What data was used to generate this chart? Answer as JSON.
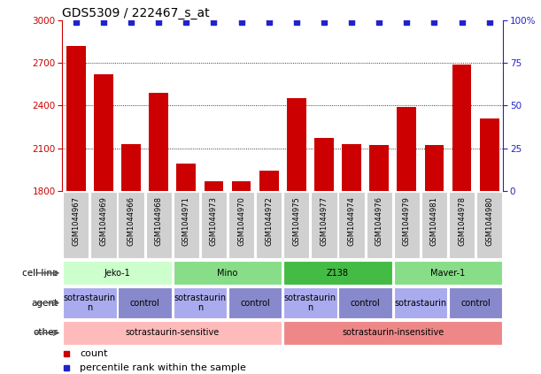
{
  "title": "GDS5309 / 222467_s_at",
  "samples": [
    "GSM1044967",
    "GSM1044969",
    "GSM1044966",
    "GSM1044968",
    "GSM1044971",
    "GSM1044973",
    "GSM1044970",
    "GSM1044972",
    "GSM1044975",
    "GSM1044977",
    "GSM1044974",
    "GSM1044976",
    "GSM1044979",
    "GSM1044981",
    "GSM1044978",
    "GSM1044980"
  ],
  "counts": [
    2820,
    2620,
    2130,
    2490,
    1990,
    1870,
    1870,
    1940,
    2450,
    2170,
    2130,
    2120,
    2390,
    2120,
    2690,
    2310
  ],
  "percentiles": [
    99,
    99,
    99,
    99,
    99,
    99,
    99,
    99,
    99,
    99,
    99,
    99,
    99,
    99,
    99,
    99
  ],
  "bar_color": "#cc0000",
  "dot_color": "#2222cc",
  "ylim_left": [
    1800,
    3000
  ],
  "ylim_right": [
    0,
    100
  ],
  "yticks_left": [
    1800,
    2100,
    2400,
    2700,
    3000
  ],
  "yticks_right": [
    0,
    25,
    50,
    75,
    100
  ],
  "cell_lines": [
    {
      "label": "Jeko-1",
      "start": 0,
      "end": 4,
      "color": "#ccffcc"
    },
    {
      "label": "Mino",
      "start": 4,
      "end": 8,
      "color": "#88dd88"
    },
    {
      "label": "Z138",
      "start": 8,
      "end": 12,
      "color": "#44bb44"
    },
    {
      "label": "Maver-1",
      "start": 12,
      "end": 16,
      "color": "#88dd88"
    }
  ],
  "agents": [
    {
      "label": "sotrastaurin\nn",
      "start": 0,
      "end": 2,
      "color": "#aaaaee"
    },
    {
      "label": "control",
      "start": 2,
      "end": 4,
      "color": "#8888cc"
    },
    {
      "label": "sotrastaurin\nn",
      "start": 4,
      "end": 6,
      "color": "#aaaaee"
    },
    {
      "label": "control",
      "start": 6,
      "end": 8,
      "color": "#8888cc"
    },
    {
      "label": "sotrastaurin\nn",
      "start": 8,
      "end": 10,
      "color": "#aaaaee"
    },
    {
      "label": "control",
      "start": 10,
      "end": 12,
      "color": "#8888cc"
    },
    {
      "label": "sotrastaurin",
      "start": 12,
      "end": 14,
      "color": "#aaaaee"
    },
    {
      "label": "control",
      "start": 14,
      "end": 16,
      "color": "#8888cc"
    }
  ],
  "others": [
    {
      "label": "sotrastaurin-sensitive",
      "start": 0,
      "end": 8,
      "color": "#ffbbbb"
    },
    {
      "label": "sotrastaurin-insensitive",
      "start": 8,
      "end": 16,
      "color": "#ee8888"
    }
  ],
  "row_labels": [
    "cell line",
    "agent",
    "other"
  ],
  "legend_count_color": "#cc0000",
  "legend_dot_color": "#2222cc",
  "title_fontsize": 10,
  "tick_fontsize": 7.5,
  "ann_fontsize": 7,
  "label_fontsize": 7.5,
  "sample_fontsize": 6,
  "bar_width": 0.7,
  "grid_yticks": [
    2100,
    2400,
    2700
  ]
}
